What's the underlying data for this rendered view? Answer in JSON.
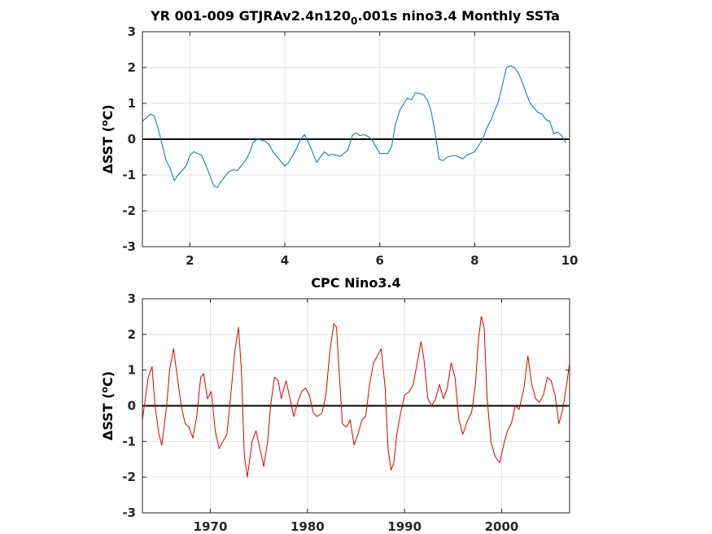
{
  "chart_data": [
    {
      "type": "line",
      "title": "YR 001-009 GTJRAv2.4n120",
      "title_sub": "0",
      "title_rest": ".001s nino3.4 Monthly SSTa",
      "ylabel_prefix": "ΔSST (",
      "ylabel_sup": "o",
      "ylabel_suffix": "C)",
      "xlim": [
        1,
        10
      ],
      "ylim": [
        -3,
        3
      ],
      "xticks": [
        2,
        4,
        6,
        8,
        10
      ],
      "xtick_labels": [
        "2",
        "4",
        "6",
        "8",
        "10"
      ],
      "yticks": [
        -3,
        -2,
        -1,
        0,
        1,
        2,
        3
      ],
      "ytick_labels": [
        "-3",
        "-2",
        "-1",
        "0",
        "1",
        "2",
        "3"
      ],
      "grid": true,
      "zero_line": true,
      "line_color": "#0072bd",
      "series": [
        {
          "x": [
            1.0,
            1.17,
            1.25,
            1.33,
            1.5,
            1.58,
            1.67,
            1.75,
            1.92,
            2.0,
            2.08,
            2.25,
            2.42,
            2.5,
            2.58,
            2.67,
            2.83,
            2.92,
            3.0,
            3.17,
            3.25,
            3.33,
            3.42,
            3.58,
            3.67,
            3.75,
            4.0,
            4.08,
            4.25,
            4.33,
            4.42,
            4.5,
            4.58,
            4.67,
            4.83,
            4.92,
            5.0,
            5.17,
            5.33,
            5.42,
            5.5,
            5.58,
            5.67,
            5.75,
            5.83,
            6.0,
            6.17,
            6.25,
            6.33,
            6.42,
            6.58,
            6.67,
            6.75,
            6.92,
            7.0,
            7.08,
            7.17,
            7.25,
            7.33,
            7.42,
            7.58,
            7.67,
            7.75,
            7.83,
            8.0,
            8.17,
            8.25,
            8.33,
            8.5,
            8.58,
            8.67,
            8.75,
            8.83,
            8.92,
            9.0,
            9.08,
            9.17,
            9.33,
            9.42,
            9.5,
            9.58,
            9.67,
            9.75,
            9.83,
            9.92
          ],
          "y": [
            0.5,
            0.7,
            0.65,
            0.3,
            -0.6,
            -0.8,
            -1.15,
            -1.0,
            -0.75,
            -0.45,
            -0.35,
            -0.45,
            -1.0,
            -1.3,
            -1.35,
            -1.15,
            -0.9,
            -0.85,
            -0.88,
            -0.6,
            -0.4,
            -0.1,
            0.0,
            -0.05,
            -0.15,
            -0.35,
            -0.75,
            -0.65,
            -0.25,
            0.0,
            0.13,
            -0.1,
            -0.35,
            -0.65,
            -0.35,
            -0.45,
            -0.42,
            -0.48,
            -0.3,
            0.1,
            0.18,
            0.1,
            0.13,
            0.08,
            0.0,
            -0.4,
            -0.4,
            -0.2,
            0.4,
            0.8,
            1.15,
            1.1,
            1.3,
            1.25,
            1.1,
            0.8,
            0.15,
            -0.55,
            -0.6,
            -0.5,
            -0.45,
            -0.5,
            -0.55,
            -0.45,
            -0.35,
            0.0,
            0.3,
            0.5,
            1.05,
            1.5,
            2.0,
            2.05,
            2.0,
            1.85,
            1.6,
            1.3,
            1.0,
            0.75,
            0.7,
            0.55,
            0.5,
            0.15,
            0.2,
            0.1,
            -0.1
          ]
        }
      ]
    },
    {
      "type": "line",
      "title": "CPC Nino3.4",
      "ylabel_prefix": "ΔSST (",
      "ylabel_sup": "o",
      "ylabel_suffix": "C)",
      "xlim": [
        1963,
        2007
      ],
      "ylim": [
        -3,
        3
      ],
      "xticks": [
        1970,
        1980,
        1990,
        2000
      ],
      "xtick_labels": [
        "1970",
        "1980",
        "1990",
        "2000"
      ],
      "yticks": [
        -3,
        -2,
        -1,
        0,
        1,
        2,
        3
      ],
      "ytick_labels": [
        "-3",
        "-2",
        "-1",
        "0",
        "1",
        "2",
        "3"
      ],
      "grid": true,
      "zero_line": true,
      "line_color": "#dd0000",
      "series": [
        {
          "x": [
            1963.0,
            1963.3,
            1963.6,
            1964.0,
            1964.3,
            1964.7,
            1965.0,
            1965.5,
            1965.8,
            1966.2,
            1966.6,
            1967.0,
            1967.4,
            1967.8,
            1968.2,
            1968.6,
            1969.0,
            1969.3,
            1969.7,
            1970.1,
            1970.5,
            1970.9,
            1971.3,
            1971.7,
            1972.1,
            1972.5,
            1972.9,
            1973.2,
            1973.5,
            1973.8,
            1974.0,
            1974.3,
            1974.7,
            1975.1,
            1975.5,
            1975.9,
            1976.2,
            1976.6,
            1977.0,
            1977.3,
            1977.8,
            1978.2,
            1978.6,
            1979.0,
            1979.4,
            1979.8,
            1980.2,
            1980.6,
            1981.0,
            1981.5,
            1981.9,
            1982.3,
            1982.7,
            1983.0,
            1983.3,
            1983.6,
            1984.0,
            1984.4,
            1984.8,
            1985.2,
            1985.6,
            1986.0,
            1986.4,
            1986.8,
            1987.2,
            1987.6,
            1988.0,
            1988.3,
            1988.6,
            1988.9,
            1989.2,
            1989.6,
            1990.0,
            1990.5,
            1990.9,
            1991.3,
            1991.7,
            1992.0,
            1992.4,
            1992.8,
            1993.2,
            1993.6,
            1994.0,
            1994.4,
            1994.8,
            1995.2,
            1995.6,
            1996.0,
            1996.5,
            1996.9,
            1997.3,
            1997.6,
            1997.9,
            1998.2,
            1998.5,
            1998.9,
            1999.3,
            1999.8,
            2000.2,
            2000.6,
            2001.0,
            2001.4,
            2001.8,
            2002.3,
            2002.7,
            2003.1,
            2003.5,
            2003.9,
            2004.3,
            2004.7,
            2005.1,
            2005.5,
            2005.9,
            2006.3,
            2006.7,
            2007.0
          ],
          "y": [
            -0.4,
            0.2,
            0.8,
            1.1,
            0.0,
            -0.8,
            -1.1,
            0.0,
            1.0,
            1.6,
            0.8,
            0.0,
            -0.5,
            -0.6,
            -0.9,
            -0.3,
            0.8,
            0.9,
            0.2,
            0.4,
            -0.7,
            -1.2,
            -1.0,
            -0.8,
            0.3,
            1.5,
            2.2,
            1.0,
            -1.4,
            -2.0,
            -1.6,
            -1.0,
            -0.7,
            -1.2,
            -1.7,
            -1.0,
            0.0,
            0.8,
            0.7,
            0.2,
            0.7,
            0.2,
            -0.3,
            0.1,
            0.4,
            0.5,
            0.3,
            -0.2,
            -0.3,
            -0.2,
            0.3,
            1.5,
            2.3,
            2.2,
            0.8,
            -0.5,
            -0.6,
            -0.4,
            -1.1,
            -0.8,
            -0.4,
            -0.3,
            0.6,
            1.2,
            1.4,
            1.6,
            0.5,
            -1.2,
            -1.8,
            -1.6,
            -0.8,
            -0.2,
            0.3,
            0.4,
            0.6,
            1.2,
            1.8,
            1.3,
            0.2,
            0.0,
            0.2,
            0.6,
            0.2,
            0.5,
            1.2,
            0.8,
            -0.4,
            -0.8,
            -0.4,
            -0.2,
            0.6,
            1.8,
            2.5,
            2.2,
            0.2,
            -1.0,
            -1.4,
            -1.6,
            -1.1,
            -0.7,
            -0.5,
            0.0,
            -0.1,
            0.5,
            1.4,
            0.6,
            0.2,
            0.1,
            0.3,
            0.8,
            0.7,
            0.3,
            -0.5,
            -0.1,
            0.6,
            1.2
          ]
        }
      ]
    }
  ]
}
